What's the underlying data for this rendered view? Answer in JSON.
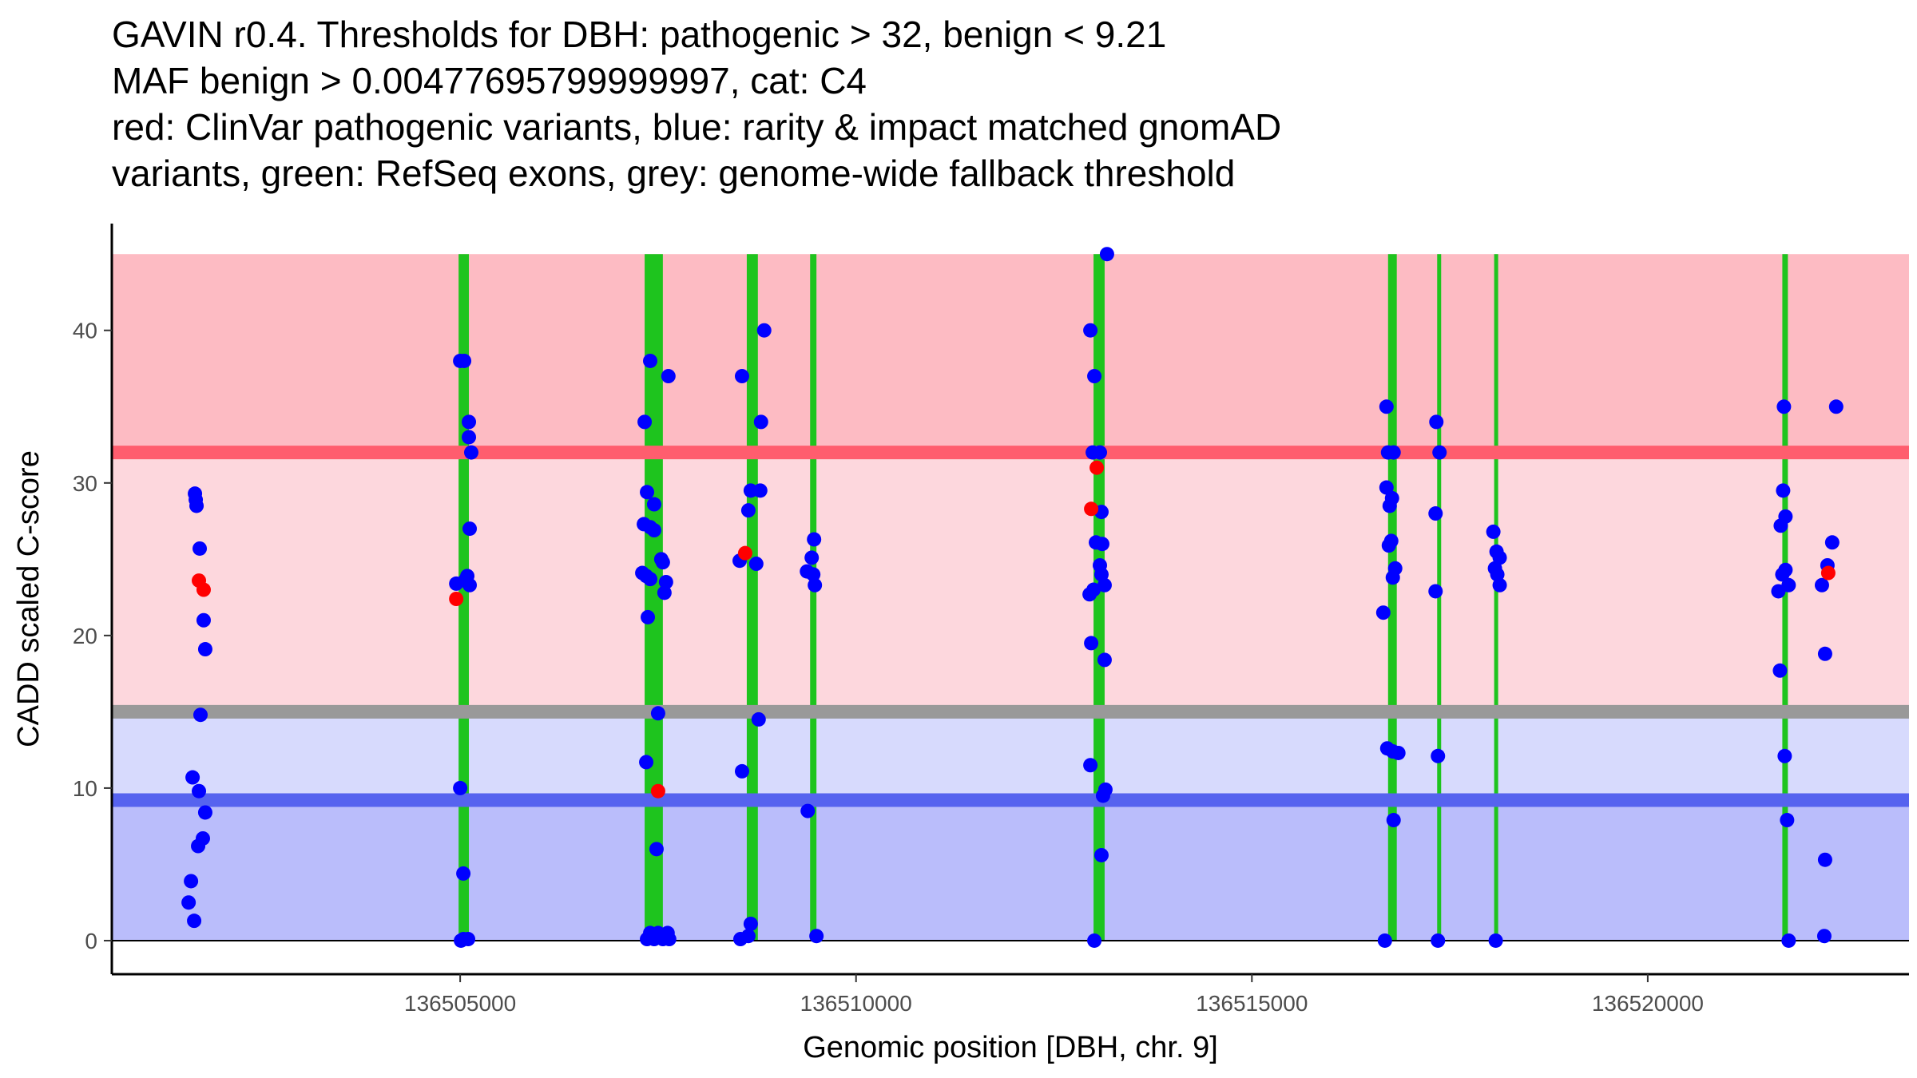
{
  "chart_data": {
    "type": "scatter",
    "title_lines": [
      "GAVIN r0.4. Thresholds for DBH: pathogenic > 32, benign < 9.21",
      "MAF benign > 0.00477695799999997, cat: C4",
      "red: ClinVar pathogenic variants, blue: rarity & impact matched gnomAD",
      "variants, green: RefSeq exons, grey: genome-wide fallback threshold"
    ],
    "xlabel": "Genomic position [DBH, chr. 9]",
    "ylabel": "CADD scaled C-score",
    "xlim": [
      136500600,
      136523300
    ],
    "ylim": [
      -2.2,
      47
    ],
    "x_ticks": [
      136505000,
      136510000,
      136515000,
      136520000
    ],
    "y_ticks": [
      0,
      10,
      20,
      30,
      40
    ],
    "thresholds": {
      "pathogenic": 32,
      "benign": 9.21,
      "fallback": 15,
      "top": 45
    },
    "colors": {
      "pathogenic_zone": "#fdbbc3",
      "upper_zone": "#fdd7dd",
      "lower_zone": "#d7dafd",
      "benign_zone": "#babdfb",
      "pathogenic_line": "#ff5d6e",
      "benign_line": "#5663ef",
      "fallback_line": "#999999",
      "exon": "#1ec41e",
      "clinvar": "#ff0000",
      "gnomad": "#0000ff"
    },
    "exons": [
      [
        136504980,
        136505110
      ],
      [
        136507330,
        136507560
      ],
      [
        136508620,
        136508760
      ],
      [
        136509420,
        136509500
      ],
      [
        136513000,
        136513140
      ],
      [
        136516720,
        136516830
      ],
      [
        136517340,
        136517370
      ],
      [
        136518060,
        136518090
      ],
      [
        136521700,
        136521770
      ]
    ],
    "series": [
      {
        "name": "ClinVar pathogenic",
        "color": "#ff0000",
        "points": [
          [
            136501700,
            23.6
          ],
          [
            136501760,
            23.0
          ],
          [
            136504950,
            22.4
          ],
          [
            136507500,
            9.8
          ],
          [
            136508600,
            25.4
          ],
          [
            136512970,
            28.3
          ],
          [
            136513040,
            31.0
          ],
          [
            136522280,
            24.1
          ]
        ]
      },
      {
        "name": "gnomAD matched",
        "color": "#0000ff",
        "points": [
          [
            136501650,
            29.3
          ],
          [
            136501660,
            28.9
          ],
          [
            136501670,
            28.5
          ],
          [
            136501710,
            25.7
          ],
          [
            136501760,
            21.0
          ],
          [
            136501780,
            19.1
          ],
          [
            136501720,
            14.8
          ],
          [
            136501620,
            10.7
          ],
          [
            136501700,
            9.8
          ],
          [
            136501780,
            8.4
          ],
          [
            136501750,
            6.7
          ],
          [
            136501690,
            6.2
          ],
          [
            136501600,
            3.9
          ],
          [
            136501570,
            2.5
          ],
          [
            136501640,
            1.3
          ],
          [
            136505000,
            38.0
          ],
          [
            136505050,
            38.0
          ],
          [
            136505110,
            34.0
          ],
          [
            136505110,
            33.0
          ],
          [
            136505140,
            32.0
          ],
          [
            136505120,
            27.0
          ],
          [
            136504950,
            23.4
          ],
          [
            136505060,
            23.6
          ],
          [
            136505090,
            23.9
          ],
          [
            136505120,
            23.3
          ],
          [
            136505000,
            10.0
          ],
          [
            136505040,
            4.4
          ],
          [
            136505040,
            0.1
          ],
          [
            136505100,
            0.1
          ],
          [
            136505010,
            0.0
          ],
          [
            136507330,
            34.0
          ],
          [
            136507360,
            29.4
          ],
          [
            136507450,
            28.6
          ],
          [
            136507320,
            27.3
          ],
          [
            136507400,
            27.1
          ],
          [
            136507450,
            26.9
          ],
          [
            136507630,
            37.0
          ],
          [
            136507400,
            38.0
          ],
          [
            136507540,
            25.0
          ],
          [
            136507560,
            24.8
          ],
          [
            136507300,
            24.1
          ],
          [
            136507350,
            23.9
          ],
          [
            136507400,
            23.7
          ],
          [
            136507600,
            23.5
          ],
          [
            136507580,
            22.8
          ],
          [
            136507370,
            21.2
          ],
          [
            136507500,
            14.9
          ],
          [
            136507350,
            11.7
          ],
          [
            136507480,
            6.0
          ],
          [
            136507400,
            0.5
          ],
          [
            136507500,
            0.5
          ],
          [
            136507620,
            0.5
          ],
          [
            136507360,
            0.1
          ],
          [
            136507450,
            0.1
          ],
          [
            136507560,
            0.1
          ],
          [
            136507640,
            0.1
          ],
          [
            136508840,
            40.0
          ],
          [
            136508560,
            37.0
          ],
          [
            136508800,
            34.0
          ],
          [
            136508670,
            29.5
          ],
          [
            136508790,
            29.5
          ],
          [
            136508640,
            28.2
          ],
          [
            136508530,
            24.9
          ],
          [
            136508740,
            24.7
          ],
          [
            136508770,
            14.5
          ],
          [
            136508560,
            11.1
          ],
          [
            136508670,
            1.1
          ],
          [
            136508640,
            0.3
          ],
          [
            136508540,
            0.1
          ],
          [
            136509470,
            26.3
          ],
          [
            136509440,
            25.1
          ],
          [
            136509380,
            24.2
          ],
          [
            136509460,
            24.0
          ],
          [
            136509480,
            23.3
          ],
          [
            136509390,
            8.5
          ],
          [
            136509500,
            0.3
          ],
          [
            136512960,
            40.0
          ],
          [
            136513010,
            37.0
          ],
          [
            136512990,
            32.0
          ],
          [
            136513080,
            32.0
          ],
          [
            136513100,
            28.1
          ],
          [
            136513030,
            26.1
          ],
          [
            136513110,
            26.0
          ],
          [
            136513080,
            24.6
          ],
          [
            136513100,
            24.0
          ],
          [
            136513140,
            23.3
          ],
          [
            136512950,
            22.7
          ],
          [
            136513000,
            23.0
          ],
          [
            136512970,
            19.5
          ],
          [
            136513140,
            18.4
          ],
          [
            136512960,
            11.5
          ],
          [
            136513150,
            9.9
          ],
          [
            136513120,
            9.5
          ],
          [
            136513100,
            5.6
          ],
          [
            136513010,
            0.0
          ],
          [
            136513170,
            45.0
          ],
          [
            136516700,
            35.0
          ],
          [
            136516720,
            32.0
          ],
          [
            136516790,
            32.0
          ],
          [
            136516700,
            29.7
          ],
          [
            136516770,
            29.0
          ],
          [
            136516740,
            28.5
          ],
          [
            136516760,
            26.2
          ],
          [
            136516730,
            25.9
          ],
          [
            136516810,
            24.4
          ],
          [
            136516780,
            23.8
          ],
          [
            136516660,
            21.5
          ],
          [
            136516710,
            12.6
          ],
          [
            136516780,
            12.4
          ],
          [
            136516850,
            12.3
          ],
          [
            136516790,
            7.9
          ],
          [
            136516680,
            0.0
          ],
          [
            136517330,
            34.0
          ],
          [
            136517370,
            32.0
          ],
          [
            136517320,
            28.0
          ],
          [
            136517320,
            22.9
          ],
          [
            136517350,
            12.1
          ],
          [
            136517350,
            0.0
          ],
          [
            136518050,
            26.8
          ],
          [
            136518090,
            25.5
          ],
          [
            136518130,
            25.1
          ],
          [
            136518070,
            24.4
          ],
          [
            136518100,
            24.0
          ],
          [
            136518130,
            23.3
          ],
          [
            136518080,
            0.0
          ],
          [
            136521720,
            35.0
          ],
          [
            136521710,
            29.5
          ],
          [
            136521740,
            27.8
          ],
          [
            136521680,
            27.2
          ],
          [
            136521700,
            24.0
          ],
          [
            136521740,
            24.3
          ],
          [
            136521650,
            22.9
          ],
          [
            136521780,
            23.3
          ],
          [
            136521670,
            17.7
          ],
          [
            136521730,
            12.1
          ],
          [
            136521760,
            7.9
          ],
          [
            136521780,
            0.0
          ],
          [
            136522380,
            35.0
          ],
          [
            136522330,
            26.1
          ],
          [
            136522270,
            24.6
          ],
          [
            136522200,
            23.3
          ],
          [
            136522240,
            18.8
          ],
          [
            136522240,
            5.3
          ],
          [
            136522230,
            0.3
          ]
        ]
      }
    ]
  }
}
